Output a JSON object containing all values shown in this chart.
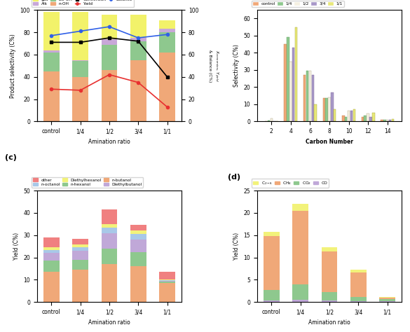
{
  "a_categories": [
    "control",
    "1/4",
    "1/2",
    "3/4",
    "1/1"
  ],
  "a_nOH": [
    45,
    40,
    46,
    55,
    62
  ],
  "a_isoOH": [
    17,
    14,
    23,
    17,
    18
  ],
  "a_Alk": [
    2,
    1,
    5,
    3,
    3
  ],
  "a_gas": [
    34,
    43,
    22,
    21,
    8
  ],
  "a_conversion": [
    71,
    71,
    75,
    72,
    40
  ],
  "a_yield": [
    29,
    28,
    42,
    35,
    13
  ],
  "a_balance": [
    77,
    81,
    85,
    75,
    78
  ],
  "b_carbon": [
    2,
    4,
    6,
    8,
    10,
    12,
    14
  ],
  "b_control": [
    0.3,
    45,
    27,
    13.5,
    3.5,
    2.5,
    0.8
  ],
  "b_14": [
    0.5,
    49,
    29.5,
    13.5,
    2.5,
    3.5,
    1.0
  ],
  "b_12": [
    1.8,
    35,
    29.5,
    14,
    6.5,
    4.5,
    1.0
  ],
  "b_34": [
    0.3,
    43,
    27,
    17,
    6.5,
    2.5,
    1.0
  ],
  "b_11": [
    0.2,
    55,
    10,
    7,
    7,
    5,
    1.2
  ],
  "c_categories": [
    "control",
    "1/4",
    "1/2",
    "3/4",
    "1/1"
  ],
  "c_nbutanol": [
    13.5,
    14.5,
    17.0,
    16.0,
    8.5
  ],
  "c_nhexanol": [
    5.0,
    4.5,
    7.0,
    6.5,
    0.7
  ],
  "c_diethylbutanol": [
    3.5,
    4.0,
    7.0,
    5.5,
    0.4
  ],
  "c_noctanol": [
    1.5,
    1.5,
    2.5,
    2.5,
    0.2
  ],
  "c_diethylhexanol": [
    1.0,
    1.5,
    1.5,
    1.5,
    0.2
  ],
  "c_other": [
    4.5,
    2.5,
    6.5,
    2.5,
    3.5
  ],
  "d_categories": [
    "control",
    "1/4",
    "1/2",
    "3/4",
    "1/1"
  ],
  "d_CO": [
    0.3,
    0.5,
    0.3,
    0.2,
    0.15
  ],
  "d_CO2": [
    2.5,
    3.5,
    2.0,
    1.0,
    0.5
  ],
  "d_CH4": [
    12.0,
    16.5,
    9.0,
    5.5,
    0.4
  ],
  "d_C26": [
    1.0,
    1.5,
    1.0,
    0.5,
    0.1
  ],
  "color_gas": "#f2f26a",
  "color_Alk": "#c8a8d8",
  "color_isoOH": "#8ec88e",
  "color_nOH": "#f0a878",
  "color_b_control": "#f0a878",
  "color_b_14": "#8ec88e",
  "color_b_12": "#f5f0e2",
  "color_b_34": "#a898c8",
  "color_b_11": "#e8e87a",
  "color_c_nbutanol": "#f0a878",
  "color_c_nhexanol": "#8ec88e",
  "color_c_diethylbutanol": "#c0a8d8",
  "color_c_noctanol": "#a8c8e8",
  "color_c_diethylhexanol": "#f2f27a",
  "color_c_other": "#f08080",
  "color_d_C26": "#f2f27a",
  "color_d_CH4": "#f0a878",
  "color_d_CO2": "#8ec88e",
  "color_d_CO": "#c0a8d8"
}
